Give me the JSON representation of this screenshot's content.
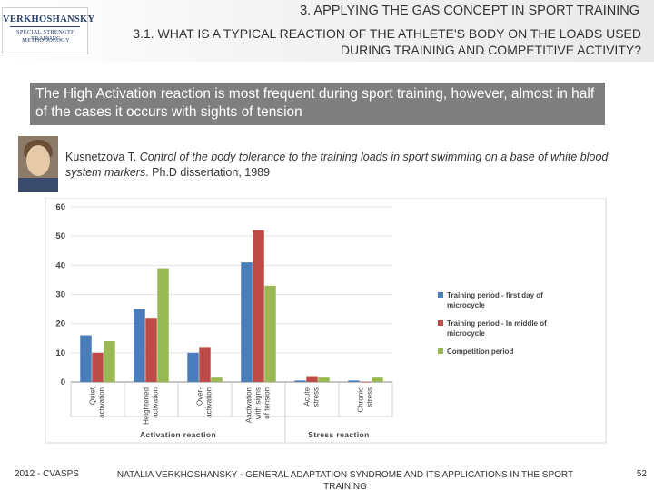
{
  "logo": {
    "title": "VERKHOSHANSKY",
    "sub1": "SPECIAL STRENGTH TRAINING",
    "sub2": "METHODOLOGY"
  },
  "header": {
    "section": "3. APPLYING THE GAS CONCEPT IN SPORT TRAINING",
    "subsection": "3.1. WHAT IS A TYPICAL REACTION OF THE ATHLETE'S BODY ON THE LOADS USED DURING TRAINING AND COMPETITIVE ACTIVITY?"
  },
  "banner": "The High Activation reaction is most frequent during sport training, however, almost in half of the cases it occurs with sights of tension",
  "citation": {
    "author": "Kusnetzova T. ",
    "title": "Control of the body tolerance to the training loads in sport swimming on a base of white blood system markers",
    "rest": ". Ph.D dissertation, 1989"
  },
  "chart_data": {
    "type": "bar",
    "categories": [
      "Quiet activation",
      "Heightened activation",
      "Over-activation",
      "Aactivation with signs of tension",
      "Acute stress",
      "Chronic stress"
    ],
    "category_lines": [
      [
        "Quiet",
        "activation"
      ],
      [
        "Heightened",
        "activation"
      ],
      [
        "Over-",
        "activation"
      ],
      [
        "Aactivation",
        "with signs",
        "of tension"
      ],
      [
        "Acute",
        "stress"
      ],
      [
        "Chronic",
        "stress"
      ]
    ],
    "series": [
      {
        "name": "Training period - first day of microcycle",
        "legend_lines": [
          "Training period - first day of",
          "microcycle"
        ],
        "color": "#4a7ebb",
        "values": [
          16,
          25,
          10,
          41,
          0.5,
          0.5
        ]
      },
      {
        "name": "Training period - In middle of microcycle",
        "legend_lines": [
          "Training period - In middle of",
          "microcycle"
        ],
        "color": "#be4b48",
        "values": [
          10,
          22,
          12,
          52,
          2,
          0
        ]
      },
      {
        "name": "Competition period",
        "legend_lines": [
          "Competition period"
        ],
        "color": "#98b954",
        "values": [
          14,
          39,
          1.5,
          33,
          1.5,
          1.5
        ]
      }
    ],
    "ylim": [
      0,
      60
    ],
    "yticks": [
      0,
      10,
      20,
      30,
      40,
      50,
      60
    ],
    "groups": [
      {
        "label": "Activation reaction",
        "span": [
          0,
          3
        ]
      },
      {
        "label": "Stress reaction",
        "span": [
          4,
          5
        ]
      }
    ],
    "grid": true,
    "legend_position": "right"
  },
  "footer": {
    "left": "2012 - CVASPS",
    "middle": "NATALIA VERKHOSHANSKY - GENERAL ADAPTATION SYNDROME AND ITS APPLICATIONS IN THE SPORT TRAINING",
    "page": "52"
  }
}
